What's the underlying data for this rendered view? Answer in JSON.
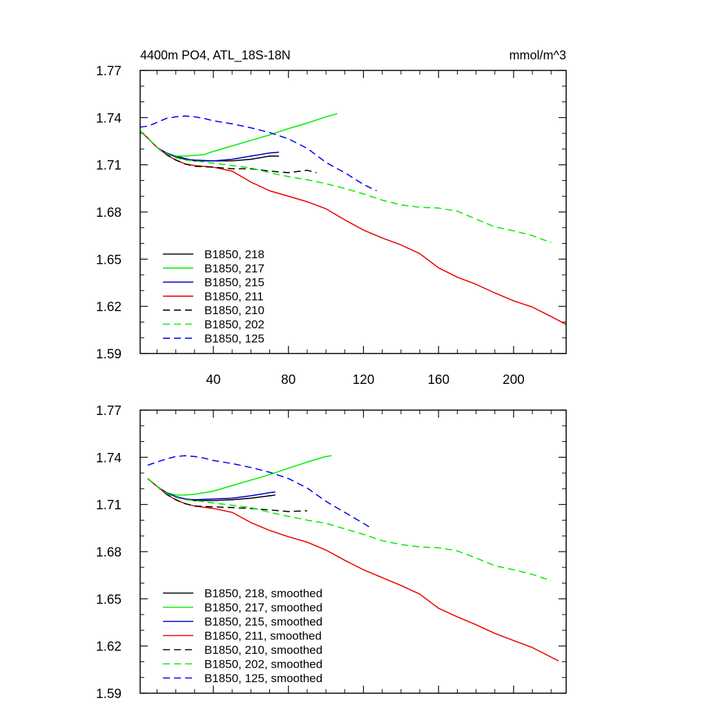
{
  "chart_data": [
    {
      "type": "line",
      "title": "4400m PO4, ATL_18S-18N",
      "units_label": "mmol/m^3",
      "xlabel": "",
      "ylabel": "",
      "xlim": [
        1,
        228
      ],
      "ylim": [
        1.59,
        1.77
      ],
      "xticks": [
        40,
        80,
        120,
        160,
        200
      ],
      "xtick_labels": [
        "40",
        "80",
        "120",
        "160",
        "200"
      ],
      "yticks": [
        1.59,
        1.62,
        1.65,
        1.68,
        1.71,
        1.74,
        1.77
      ],
      "ytick_labels": [
        "1.59",
        "1.62",
        "1.65",
        "1.68",
        "1.71",
        "1.74",
        "1.77"
      ],
      "grid": false,
      "legend_position": "lower-left",
      "series": [
        {
          "name": "B1850, 218",
          "color": "#000000",
          "dash": "solid",
          "x": [
            1,
            5,
            10,
            15,
            20,
            25,
            30,
            40,
            50,
            60,
            70,
            75
          ],
          "y": [
            1.7315,
            1.727,
            1.721,
            1.7175,
            1.7155,
            1.714,
            1.7125,
            1.7125,
            1.7125,
            1.7135,
            1.7155,
            1.7155
          ]
        },
        {
          "name": "B1850, 217",
          "color": "#00ee00",
          "dash": "solid",
          "x": [
            1,
            5,
            10,
            15,
            20,
            25,
            30,
            35,
            40,
            50,
            60,
            70,
            80,
            90,
            100,
            106
          ],
          "y": [
            1.7315,
            1.727,
            1.721,
            1.7175,
            1.7155,
            1.7155,
            1.716,
            1.7165,
            1.7185,
            1.722,
            1.7255,
            1.729,
            1.733,
            1.7365,
            1.7405,
            1.7425
          ]
        },
        {
          "name": "B1850, 215",
          "color": "#0000cc",
          "dash": "solid",
          "x": [
            1,
            5,
            10,
            15,
            20,
            25,
            30,
            40,
            50,
            60,
            70,
            75
          ],
          "y": [
            1.7315,
            1.727,
            1.721,
            1.7175,
            1.715,
            1.7135,
            1.713,
            1.7125,
            1.7135,
            1.7155,
            1.7175,
            1.718
          ]
        },
        {
          "name": "B1850, 211",
          "color": "#ee0000",
          "dash": "solid",
          "x": [
            1,
            5,
            10,
            15,
            20,
            25,
            30,
            40,
            50,
            60,
            70,
            80,
            90,
            100,
            110,
            120,
            130,
            140,
            150,
            160,
            170,
            180,
            190,
            200,
            210,
            220,
            228
          ],
          "y": [
            1.7315,
            1.727,
            1.721,
            1.7165,
            1.713,
            1.7105,
            1.7095,
            1.7085,
            1.706,
            1.699,
            1.6935,
            1.69,
            1.6865,
            1.682,
            1.675,
            1.6685,
            1.6635,
            1.659,
            1.6535,
            1.6445,
            1.6385,
            1.634,
            1.6285,
            1.6235,
            1.6195,
            1.6135,
            1.6085
          ]
        },
        {
          "name": "B1850, 210",
          "color": "#000000",
          "dash": "dashed",
          "x": [
            1,
            5,
            10,
            15,
            20,
            25,
            30,
            40,
            50,
            60,
            70,
            80,
            90,
            95
          ],
          "y": [
            1.7315,
            1.727,
            1.721,
            1.7165,
            1.713,
            1.7105,
            1.709,
            1.7085,
            1.7075,
            1.7075,
            1.706,
            1.705,
            1.7065,
            1.705
          ]
        },
        {
          "name": "B1850, 202",
          "color": "#00ee00",
          "dash": "dashed",
          "x": [
            1,
            5,
            10,
            15,
            20,
            25,
            30,
            40,
            50,
            60,
            70,
            80,
            90,
            100,
            110,
            120,
            130,
            140,
            150,
            160,
            170,
            180,
            190,
            200,
            210,
            220
          ],
          "y": [
            1.7315,
            1.727,
            1.721,
            1.717,
            1.7145,
            1.713,
            1.7125,
            1.711,
            1.7095,
            1.708,
            1.705,
            1.7025,
            1.7005,
            1.698,
            1.695,
            1.6915,
            1.6875,
            1.6845,
            1.683,
            1.6825,
            1.6805,
            1.6755,
            1.6705,
            1.668,
            1.665,
            1.6605
          ]
        },
        {
          "name": "B1850, 125",
          "color": "#0000ee",
          "dash": "dashed",
          "x": [
            1,
            5,
            10,
            15,
            20,
            25,
            30,
            35,
            40,
            50,
            60,
            70,
            80,
            90,
            100,
            110,
            120,
            127
          ],
          "y": [
            1.734,
            1.7345,
            1.737,
            1.7395,
            1.7405,
            1.741,
            1.7405,
            1.7395,
            1.738,
            1.736,
            1.7335,
            1.7305,
            1.7265,
            1.7205,
            1.7115,
            1.705,
            1.6975,
            1.6935
          ]
        }
      ]
    },
    {
      "type": "line",
      "title": "",
      "units_label": "",
      "xlabel": "",
      "ylabel": "",
      "xlim": [
        1,
        228
      ],
      "ylim": [
        1.59,
        1.77
      ],
      "xticks": [
        40,
        80,
        120,
        160,
        200
      ],
      "xtick_labels": [],
      "yticks": [
        1.59,
        1.62,
        1.65,
        1.68,
        1.71,
        1.74,
        1.77
      ],
      "ytick_labels": [
        "1.59",
        "1.62",
        "1.65",
        "1.68",
        "1.71",
        "1.74",
        "1.77"
      ],
      "grid": false,
      "legend_position": "lower-left",
      "series": [
        {
          "name": "B1850, 218, smoothed",
          "color": "#000000",
          "dash": "solid",
          "x": [
            5,
            10,
            15,
            20,
            25,
            30,
            40,
            50,
            60,
            70,
            73
          ],
          "y": [
            1.7265,
            1.7215,
            1.7175,
            1.715,
            1.7135,
            1.7125,
            1.7125,
            1.713,
            1.714,
            1.7155,
            1.716
          ]
        },
        {
          "name": "B1850, 217, smoothed",
          "color": "#00ee00",
          "dash": "solid",
          "x": [
            5,
            10,
            15,
            20,
            25,
            30,
            40,
            50,
            60,
            70,
            80,
            90,
            100,
            103
          ],
          "y": [
            1.7265,
            1.7215,
            1.7175,
            1.716,
            1.716,
            1.7165,
            1.7185,
            1.722,
            1.7255,
            1.729,
            1.733,
            1.737,
            1.7405,
            1.741
          ]
        },
        {
          "name": "B1850, 215, smoothed",
          "color": "#0000cc",
          "dash": "solid",
          "x": [
            5,
            10,
            15,
            20,
            25,
            30,
            40,
            50,
            60,
            70,
            73
          ],
          "y": [
            1.7265,
            1.7215,
            1.7175,
            1.715,
            1.7135,
            1.713,
            1.7135,
            1.714,
            1.7155,
            1.7175,
            1.718
          ]
        },
        {
          "name": "B1850, 211, smoothed",
          "color": "#ee0000",
          "dash": "solid",
          "x": [
            5,
            10,
            15,
            20,
            25,
            30,
            40,
            50,
            60,
            70,
            80,
            90,
            100,
            110,
            120,
            130,
            140,
            150,
            160,
            170,
            180,
            190,
            200,
            210,
            224
          ],
          "y": [
            1.7265,
            1.7215,
            1.7165,
            1.713,
            1.7105,
            1.709,
            1.7075,
            1.705,
            1.6985,
            1.6935,
            1.6895,
            1.686,
            1.681,
            1.6745,
            1.6685,
            1.6635,
            1.6585,
            1.653,
            1.644,
            1.6385,
            1.6335,
            1.628,
            1.6235,
            1.619,
            1.6105
          ]
        },
        {
          "name": "B1850, 210, smoothed",
          "color": "#000000",
          "dash": "dashed",
          "x": [
            5,
            10,
            15,
            20,
            25,
            30,
            40,
            50,
            60,
            70,
            80,
            90
          ],
          "y": [
            1.7265,
            1.7215,
            1.7165,
            1.713,
            1.7105,
            1.709,
            1.7085,
            1.708,
            1.7075,
            1.7065,
            1.7055,
            1.706
          ]
        },
        {
          "name": "B1850, 202, smoothed",
          "color": "#00ee00",
          "dash": "dashed",
          "x": [
            5,
            10,
            15,
            20,
            25,
            30,
            40,
            50,
            60,
            70,
            80,
            90,
            100,
            110,
            120,
            130,
            140,
            150,
            160,
            170,
            180,
            190,
            200,
            210,
            220
          ],
          "y": [
            1.7265,
            1.7215,
            1.717,
            1.7145,
            1.713,
            1.7125,
            1.711,
            1.7095,
            1.708,
            1.705,
            1.7025,
            1.7,
            1.698,
            1.6945,
            1.691,
            1.687,
            1.6845,
            1.683,
            1.6825,
            1.6805,
            1.676,
            1.671,
            1.6685,
            1.6655,
            1.6615
          ]
        },
        {
          "name": "B1850, 125, smoothed",
          "color": "#0000ee",
          "dash": "dashed",
          "x": [
            5,
            10,
            15,
            20,
            25,
            30,
            35,
            40,
            50,
            60,
            70,
            80,
            90,
            100,
            110,
            120,
            124
          ],
          "y": [
            1.735,
            1.737,
            1.739,
            1.7405,
            1.741,
            1.7405,
            1.7395,
            1.738,
            1.736,
            1.7335,
            1.7305,
            1.7265,
            1.7205,
            1.712,
            1.705,
            1.698,
            1.695
          ]
        }
      ]
    }
  ]
}
